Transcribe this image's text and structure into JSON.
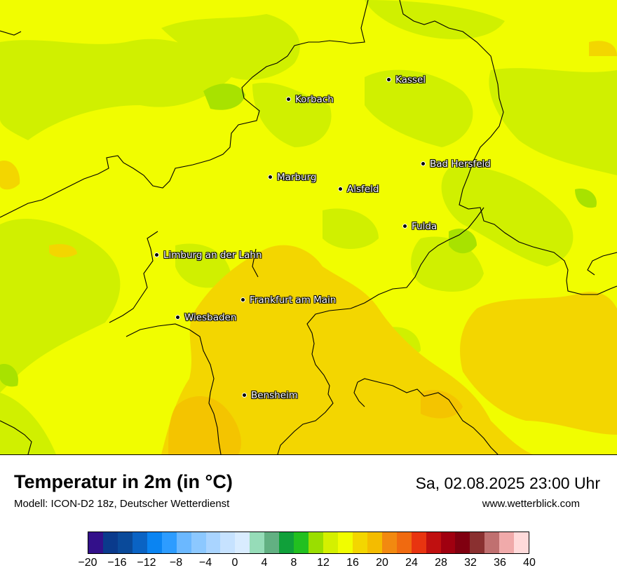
{
  "map": {
    "cities": [
      {
        "name": "Kassel"
      },
      {
        "name": "Korbach"
      },
      {
        "name": "Bad Hersfeld"
      },
      {
        "name": "Marburg"
      },
      {
        "name": "Alsfeld"
      },
      {
        "name": "Fulda"
      },
      {
        "name": "Limburg an der Lahn"
      },
      {
        "name": "Frankfurt am Main"
      },
      {
        "name": "Wiesbaden"
      },
      {
        "name": "Bensheim"
      }
    ]
  },
  "title": "Temperatur in 2m (in °C)",
  "model": "Modell: ICON-D2 18z, Deutscher Wetterdienst",
  "datetime": "Sa, 02.08.2025 23:00 Uhr",
  "website": "www.wetterblick.com",
  "legend": {
    "ticks": [
      "−20",
      "−16",
      "−12",
      "−8",
      "−4",
      "0",
      "4",
      "8",
      "12",
      "16",
      "20",
      "24",
      "28",
      "32",
      "36",
      "40"
    ],
    "colors": [
      "#33108a",
      "#0a3a8c",
      "#0a4a9a",
      "#0a63c4",
      "#0a84f2",
      "#2d9cff",
      "#6bb8ff",
      "#8cc8ff",
      "#a9d4ff",
      "#c6e2ff",
      "#d9ecff",
      "#96dcb8",
      "#62b082",
      "#10a03a",
      "#22c020",
      "#9ade00",
      "#d4f000",
      "#f1fd00",
      "#f3d600",
      "#f4bc00",
      "#f28910",
      "#f06a10",
      "#e83410",
      "#c01010",
      "#a00010",
      "#800010",
      "#8a3030",
      "#c07070",
      "#f0aaaa",
      "#ffdada"
    ],
    "range": [
      -20,
      40
    ],
    "step": 2
  }
}
